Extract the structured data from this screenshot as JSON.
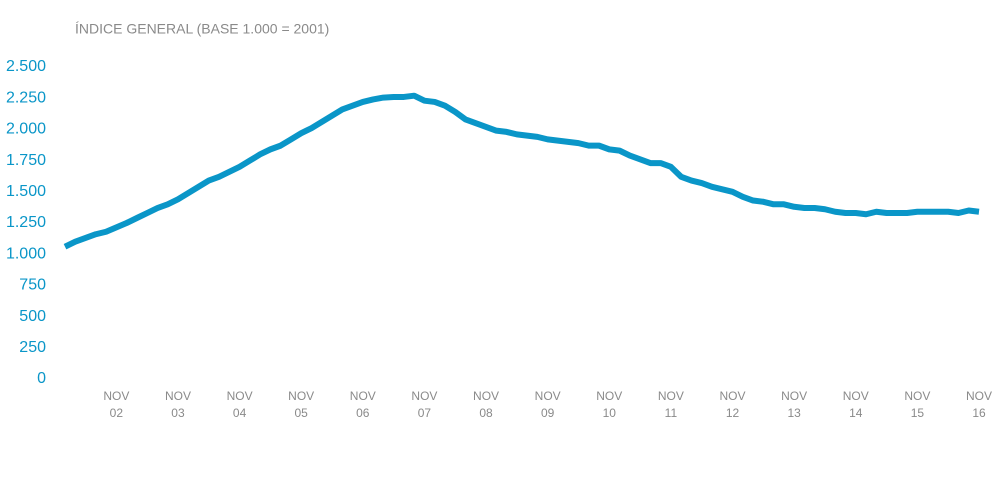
{
  "chart_data": {
    "type": "line",
    "title": "ÍNDICE GENERAL (BASE 1.000 = 2001)",
    "categories": [
      null,
      null,
      null,
      null,
      null,
      "NOV\n02",
      null,
      null,
      null,
      null,
      null,
      "NOV\n03",
      null,
      null,
      null,
      null,
      null,
      "NOV\n04",
      null,
      null,
      null,
      null,
      null,
      "NOV\n05",
      null,
      null,
      null,
      null,
      null,
      "NOV\n06",
      null,
      null,
      null,
      null,
      null,
      "NOV\n07",
      null,
      null,
      null,
      null,
      null,
      "NOV\n08",
      null,
      null,
      null,
      null,
      null,
      "NOV\n09",
      null,
      null,
      null,
      null,
      null,
      "NOV\n10",
      null,
      null,
      null,
      null,
      null,
      "NOV\n11",
      null,
      null,
      null,
      null,
      null,
      "NOV\n12",
      null,
      null,
      null,
      null,
      null,
      "NOV\n13",
      null,
      null,
      null,
      null,
      null,
      "NOV\n14",
      null,
      null,
      null,
      null,
      null,
      "NOV\n15",
      null,
      null,
      null,
      null,
      null,
      "NOV\n16"
    ],
    "values": [
      1060,
      1100,
      1130,
      1160,
      1180,
      1215,
      1250,
      1290,
      1330,
      1370,
      1400,
      1440,
      1490,
      1540,
      1590,
      1620,
      1660,
      1700,
      1750,
      1800,
      1840,
      1870,
      1920,
      1970,
      2010,
      2060,
      2110,
      2160,
      2190,
      2220,
      2240,
      2255,
      2260,
      2260,
      2270,
      2230,
      2220,
      2190,
      2140,
      2080,
      2050,
      2020,
      1990,
      1980,
      1960,
      1950,
      1940,
      1920,
      1910,
      1900,
      1890,
      1870,
      1870,
      1840,
      1830,
      1790,
      1760,
      1730,
      1730,
      1700,
      1620,
      1590,
      1570,
      1540,
      1520,
      1500,
      1460,
      1430,
      1420,
      1400,
      1400,
      1380,
      1370,
      1370,
      1360,
      1340,
      1330,
      1330,
      1320,
      1340,
      1330,
      1330,
      1330,
      1340,
      1340,
      1340,
      1340,
      1330,
      1350,
      1340
    ],
    "color": "#0a96c8",
    "ylim": [
      0,
      2500
    ],
    "yticks": [
      0,
      250,
      500,
      750,
      {
        "value": 1000,
        "label": "1.000"
      },
      {
        "value": 1250,
        "label": "1.250"
      },
      {
        "value": 1500,
        "label": "1.500"
      },
      {
        "value": 1750,
        "label": "1.750"
      },
      {
        "value": 2000,
        "label": "2.000"
      },
      {
        "value": 2250,
        "label": "2.250"
      },
      {
        "value": 2500,
        "label": "2.500"
      }
    ],
    "grid": false
  }
}
